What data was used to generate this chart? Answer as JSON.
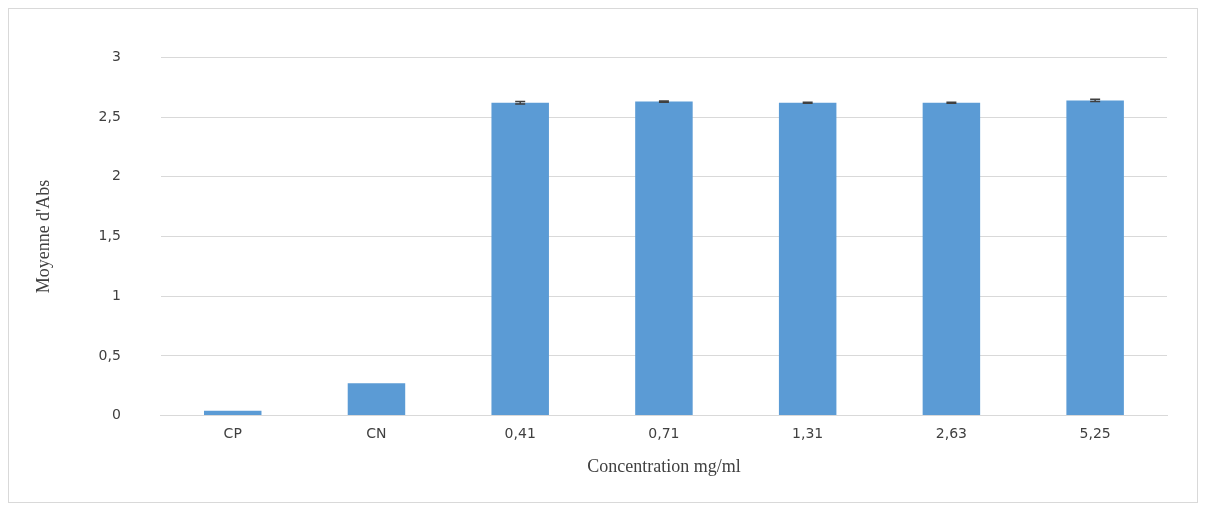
{
  "chart_data": {
    "type": "bar",
    "xlabel": "Concentration mg/ml",
    "ylabel": "Moyenne d'Abs",
    "categories": [
      "CP",
      "CN",
      "0,41",
      "0,71",
      "1,31",
      "2,63",
      "5,25"
    ],
    "values": [
      0.04,
      0.27,
      2.62,
      2.63,
      2.62,
      2.62,
      2.64
    ],
    "errors": [
      null,
      null,
      0.01,
      0.005,
      0.005,
      0.005,
      0.01
    ],
    "color": "#5b9bd5",
    "ylim": [
      0,
      3
    ],
    "yticks": [
      {
        "value": 0,
        "label": "0"
      },
      {
        "value": 0.5,
        "label": "0,5"
      },
      {
        "value": 1,
        "label": "1"
      },
      {
        "value": 1.5,
        "label": "1,5"
      },
      {
        "value": 2,
        "label": "2"
      },
      {
        "value": 2.5,
        "label": "2,5"
      },
      {
        "value": 3,
        "label": "3"
      }
    ],
    "grid": "y",
    "legend": false
  }
}
